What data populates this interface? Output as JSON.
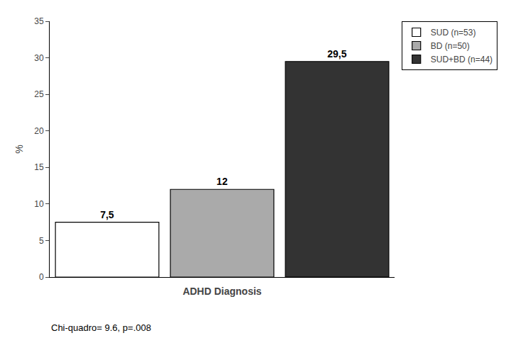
{
  "chart_data": {
    "type": "bar",
    "categories": [
      "SUD (n=53)",
      "BD (n=50)",
      "SUD+BD (n=44)"
    ],
    "values": [
      7.5,
      12,
      29.5
    ],
    "value_labels": [
      "7,5",
      "12",
      "29,5"
    ],
    "colors": [
      "#ffffff",
      "#aaaaaa",
      "#333333"
    ],
    "xlabel": "ADHD Diagnosis",
    "ylabel": "%",
    "annotation": "Chi-quadro= 9.6, p=.008",
    "ylim": [
      0,
      35
    ],
    "yticks": [
      0,
      5,
      10,
      15,
      20,
      25,
      30,
      35
    ],
    "grid": false,
    "legend": "right",
    "data_labels": true,
    "tick_labels": "y"
  }
}
